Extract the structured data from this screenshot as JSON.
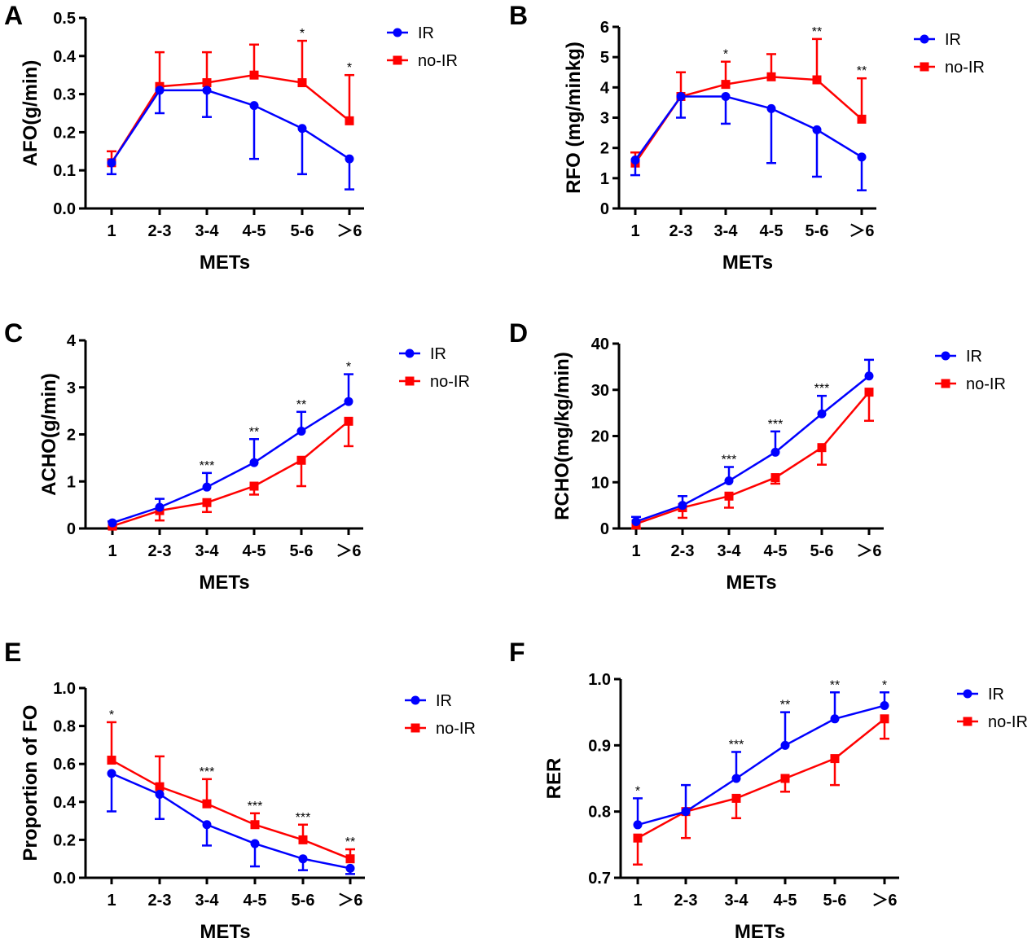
{
  "colors": {
    "IR": "#0000ff",
    "no-IR": "#ff0000"
  },
  "chart_data": [
    {
      "panel": "A",
      "type": "line",
      "xlabel": "METs",
      "ylabel": "AFO(g/min)",
      "categories": [
        "1",
        "2-3",
        "3-4",
        "4-5",
        "5-6",
        "＞6"
      ],
      "ylim": [
        0,
        0.5
      ],
      "yticks": [
        "0.0",
        "0.1",
        "0.2",
        "0.3",
        "0.4",
        "0.5"
      ],
      "legend": "top-right",
      "series": [
        {
          "name": "IR",
          "marker": "circle",
          "values": [
            0.12,
            0.31,
            0.31,
            0.27,
            0.21,
            0.13
          ],
          "error_bound": [
            0.09,
            0.25,
            0.24,
            0.13,
            0.09,
            0.05
          ]
        },
        {
          "name": "no-IR",
          "marker": "square",
          "values": [
            0.12,
            0.32,
            0.33,
            0.35,
            0.33,
            0.23
          ],
          "error_bound": [
            0.15,
            0.41,
            0.41,
            0.43,
            0.44,
            0.35
          ]
        }
      ],
      "significance": [
        "",
        "",
        "",
        "",
        "*",
        "*"
      ]
    },
    {
      "panel": "B",
      "type": "line",
      "xlabel": "METs",
      "ylabel": "RFO (mg/minkg)",
      "categories": [
        "1",
        "2-3",
        "3-4",
        "4-5",
        "5-6",
        "＞6"
      ],
      "ylim": [
        0,
        6
      ],
      "yticks": [
        "0",
        "1",
        "2",
        "3",
        "4",
        "5",
        "6"
      ],
      "legend": "top-right",
      "series": [
        {
          "name": "IR",
          "marker": "circle",
          "values": [
            1.6,
            3.7,
            3.7,
            3.3,
            2.6,
            1.7
          ],
          "error_bound": [
            1.1,
            3.0,
            2.8,
            1.5,
            1.05,
            0.6
          ]
        },
        {
          "name": "no-IR",
          "marker": "square",
          "values": [
            1.5,
            3.7,
            4.1,
            4.35,
            4.25,
            2.95
          ],
          "error_bound": [
            1.85,
            4.5,
            4.85,
            5.1,
            5.6,
            4.3
          ]
        }
      ],
      "significance": [
        "",
        "",
        "*",
        "",
        "**",
        "**"
      ]
    },
    {
      "panel": "C",
      "type": "line",
      "xlabel": "METs",
      "ylabel": "ACHO(g/min)",
      "categories": [
        "1",
        "2-3",
        "3-4",
        "4-5",
        "5-6",
        "＞6"
      ],
      "ylim": [
        0,
        4
      ],
      "yticks": [
        "0",
        "1",
        "2",
        "3",
        "4"
      ],
      "legend": "top-right",
      "series": [
        {
          "name": "IR",
          "marker": "circle",
          "values": [
            0.12,
            0.45,
            0.88,
            1.4,
            2.07,
            2.7
          ],
          "error_bound": [
            0.15,
            0.63,
            1.18,
            1.9,
            2.48,
            3.28
          ]
        },
        {
          "name": "no-IR",
          "marker": "square",
          "values": [
            0.05,
            0.38,
            0.55,
            0.9,
            1.45,
            2.28
          ],
          "error_bound": [
            0.02,
            0.17,
            0.35,
            0.72,
            0.9,
            1.75
          ]
        }
      ],
      "significance": [
        "",
        "",
        "***",
        "**",
        "**",
        "*"
      ]
    },
    {
      "panel": "D",
      "type": "line",
      "xlabel": "METs",
      "ylabel": "RCHO(mg/kg/min)",
      "categories": [
        "1",
        "2-3",
        "3-4",
        "4-5",
        "5-6",
        "＞6"
      ],
      "ylim": [
        0,
        40
      ],
      "yticks": [
        "0",
        "10",
        "20",
        "30",
        "40"
      ],
      "legend": "top-right",
      "series": [
        {
          "name": "IR",
          "marker": "circle",
          "values": [
            1.5,
            5,
            10.3,
            16.5,
            24.8,
            33
          ],
          "error_bound": [
            2.5,
            7,
            13.3,
            21,
            28.7,
            36.5
          ]
        },
        {
          "name": "no-IR",
          "marker": "square",
          "values": [
            1,
            4.5,
            7,
            11,
            17.5,
            29.5
          ],
          "error_bound": [
            0,
            2.3,
            4.5,
            9.7,
            13.8,
            23.3
          ]
        }
      ],
      "significance": [
        "",
        "",
        "***",
        "***",
        "***",
        ""
      ]
    },
    {
      "panel": "E",
      "type": "line",
      "xlabel": "METs",
      "ylabel": "Proportion of FO",
      "categories": [
        "1",
        "2-3",
        "3-4",
        "4-5",
        "5-6",
        "＞6"
      ],
      "ylim": [
        0,
        1
      ],
      "yticks": [
        "0.0",
        "0.2",
        "0.4",
        "0.6",
        "0.8",
        "1.0"
      ],
      "legend": "top-right",
      "series": [
        {
          "name": "IR",
          "marker": "circle",
          "values": [
            0.55,
            0.44,
            0.28,
            0.18,
            0.1,
            0.05
          ],
          "error_bound": [
            0.35,
            0.31,
            0.17,
            0.06,
            0.04,
            0.02
          ]
        },
        {
          "name": "no-IR",
          "marker": "square",
          "values": [
            0.62,
            0.48,
            0.39,
            0.28,
            0.2,
            0.1
          ],
          "error_bound": [
            0.82,
            0.64,
            0.52,
            0.34,
            0.28,
            0.15
          ]
        }
      ],
      "significance": [
        "*",
        "",
        "***",
        "***",
        "***",
        "**"
      ]
    },
    {
      "panel": "F",
      "type": "line",
      "xlabel": "METs",
      "ylabel": "RER",
      "categories": [
        "1",
        "2-3",
        "3-4",
        "4-5",
        "5-6",
        "＞6"
      ],
      "ylim": [
        0.7,
        1.0
      ],
      "yticks": [
        "0.7",
        "0.8",
        "0.9",
        "1.0"
      ],
      "legend": "top-right",
      "series": [
        {
          "name": "IR",
          "marker": "circle",
          "values": [
            0.78,
            0.8,
            0.85,
            0.9,
            0.94,
            0.96
          ],
          "error_bound": [
            0.82,
            0.84,
            0.89,
            0.95,
            0.98,
            0.98
          ]
        },
        {
          "name": "no-IR",
          "marker": "square",
          "values": [
            0.76,
            0.8,
            0.82,
            0.85,
            0.88,
            0.94
          ],
          "error_bound": [
            0.72,
            0.76,
            0.79,
            0.83,
            0.84,
            0.91
          ]
        }
      ],
      "significance": [
        "*",
        "",
        "***",
        "**",
        "**",
        "*"
      ]
    }
  ]
}
